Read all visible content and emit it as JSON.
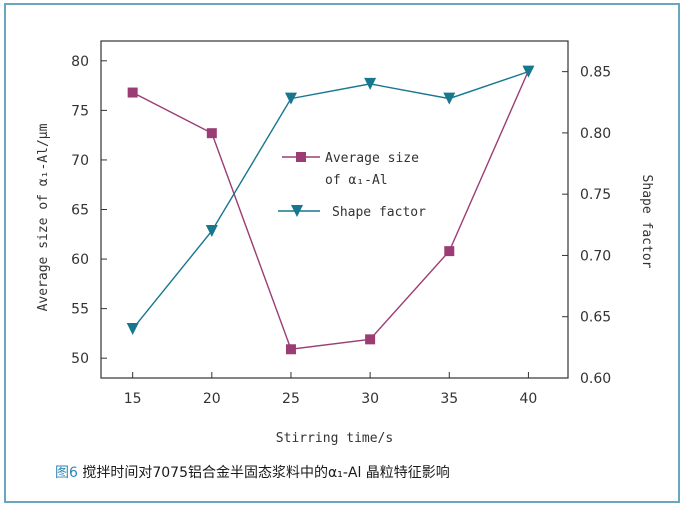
{
  "figure": {
    "caption_number": "图6",
    "caption_text": " 搅拌时间对7075铝合金半固态浆料中的α₁-Al 晶粒特征影响"
  },
  "chart_data": {
    "type": "line",
    "xlabel": "Stirring time/s",
    "ylabel_left": "Average size of α₁-Al/μm",
    "ylabel_right": "Shape factor",
    "x": [
      15,
      20,
      25,
      30,
      35,
      40
    ],
    "xlim": [
      13,
      42.5
    ],
    "ylim_left": [
      48,
      82
    ],
    "ylim_right": [
      0.6,
      0.875
    ],
    "xticks": [
      15,
      20,
      25,
      30,
      35,
      40
    ],
    "yticks_left": [
      50,
      55,
      60,
      65,
      70,
      75,
      80
    ],
    "yticks_right": [
      0.6,
      0.65,
      0.7,
      0.75,
      0.8,
      0.85
    ],
    "yticks_right_labels": [
      "0.60",
      "0.65",
      "0.70",
      "0.75",
      "0.80",
      "0.85"
    ],
    "series": [
      {
        "name_line1": "Average size",
        "name_line2": "of α₁-Al",
        "axis": "left",
        "marker": "square",
        "color": "#9b3d74",
        "values": [
          76.8,
          72.7,
          50.9,
          51.9,
          60.8,
          null
        ]
      },
      {
        "name": "Shape factor",
        "axis": "right",
        "marker": "triangle-down",
        "color": "#17778f",
        "values": [
          0.64,
          0.72,
          0.828,
          0.84,
          0.828,
          0.85
        ]
      }
    ],
    "extra_segment_note_value": 79.0,
    "legend_position": "center"
  }
}
